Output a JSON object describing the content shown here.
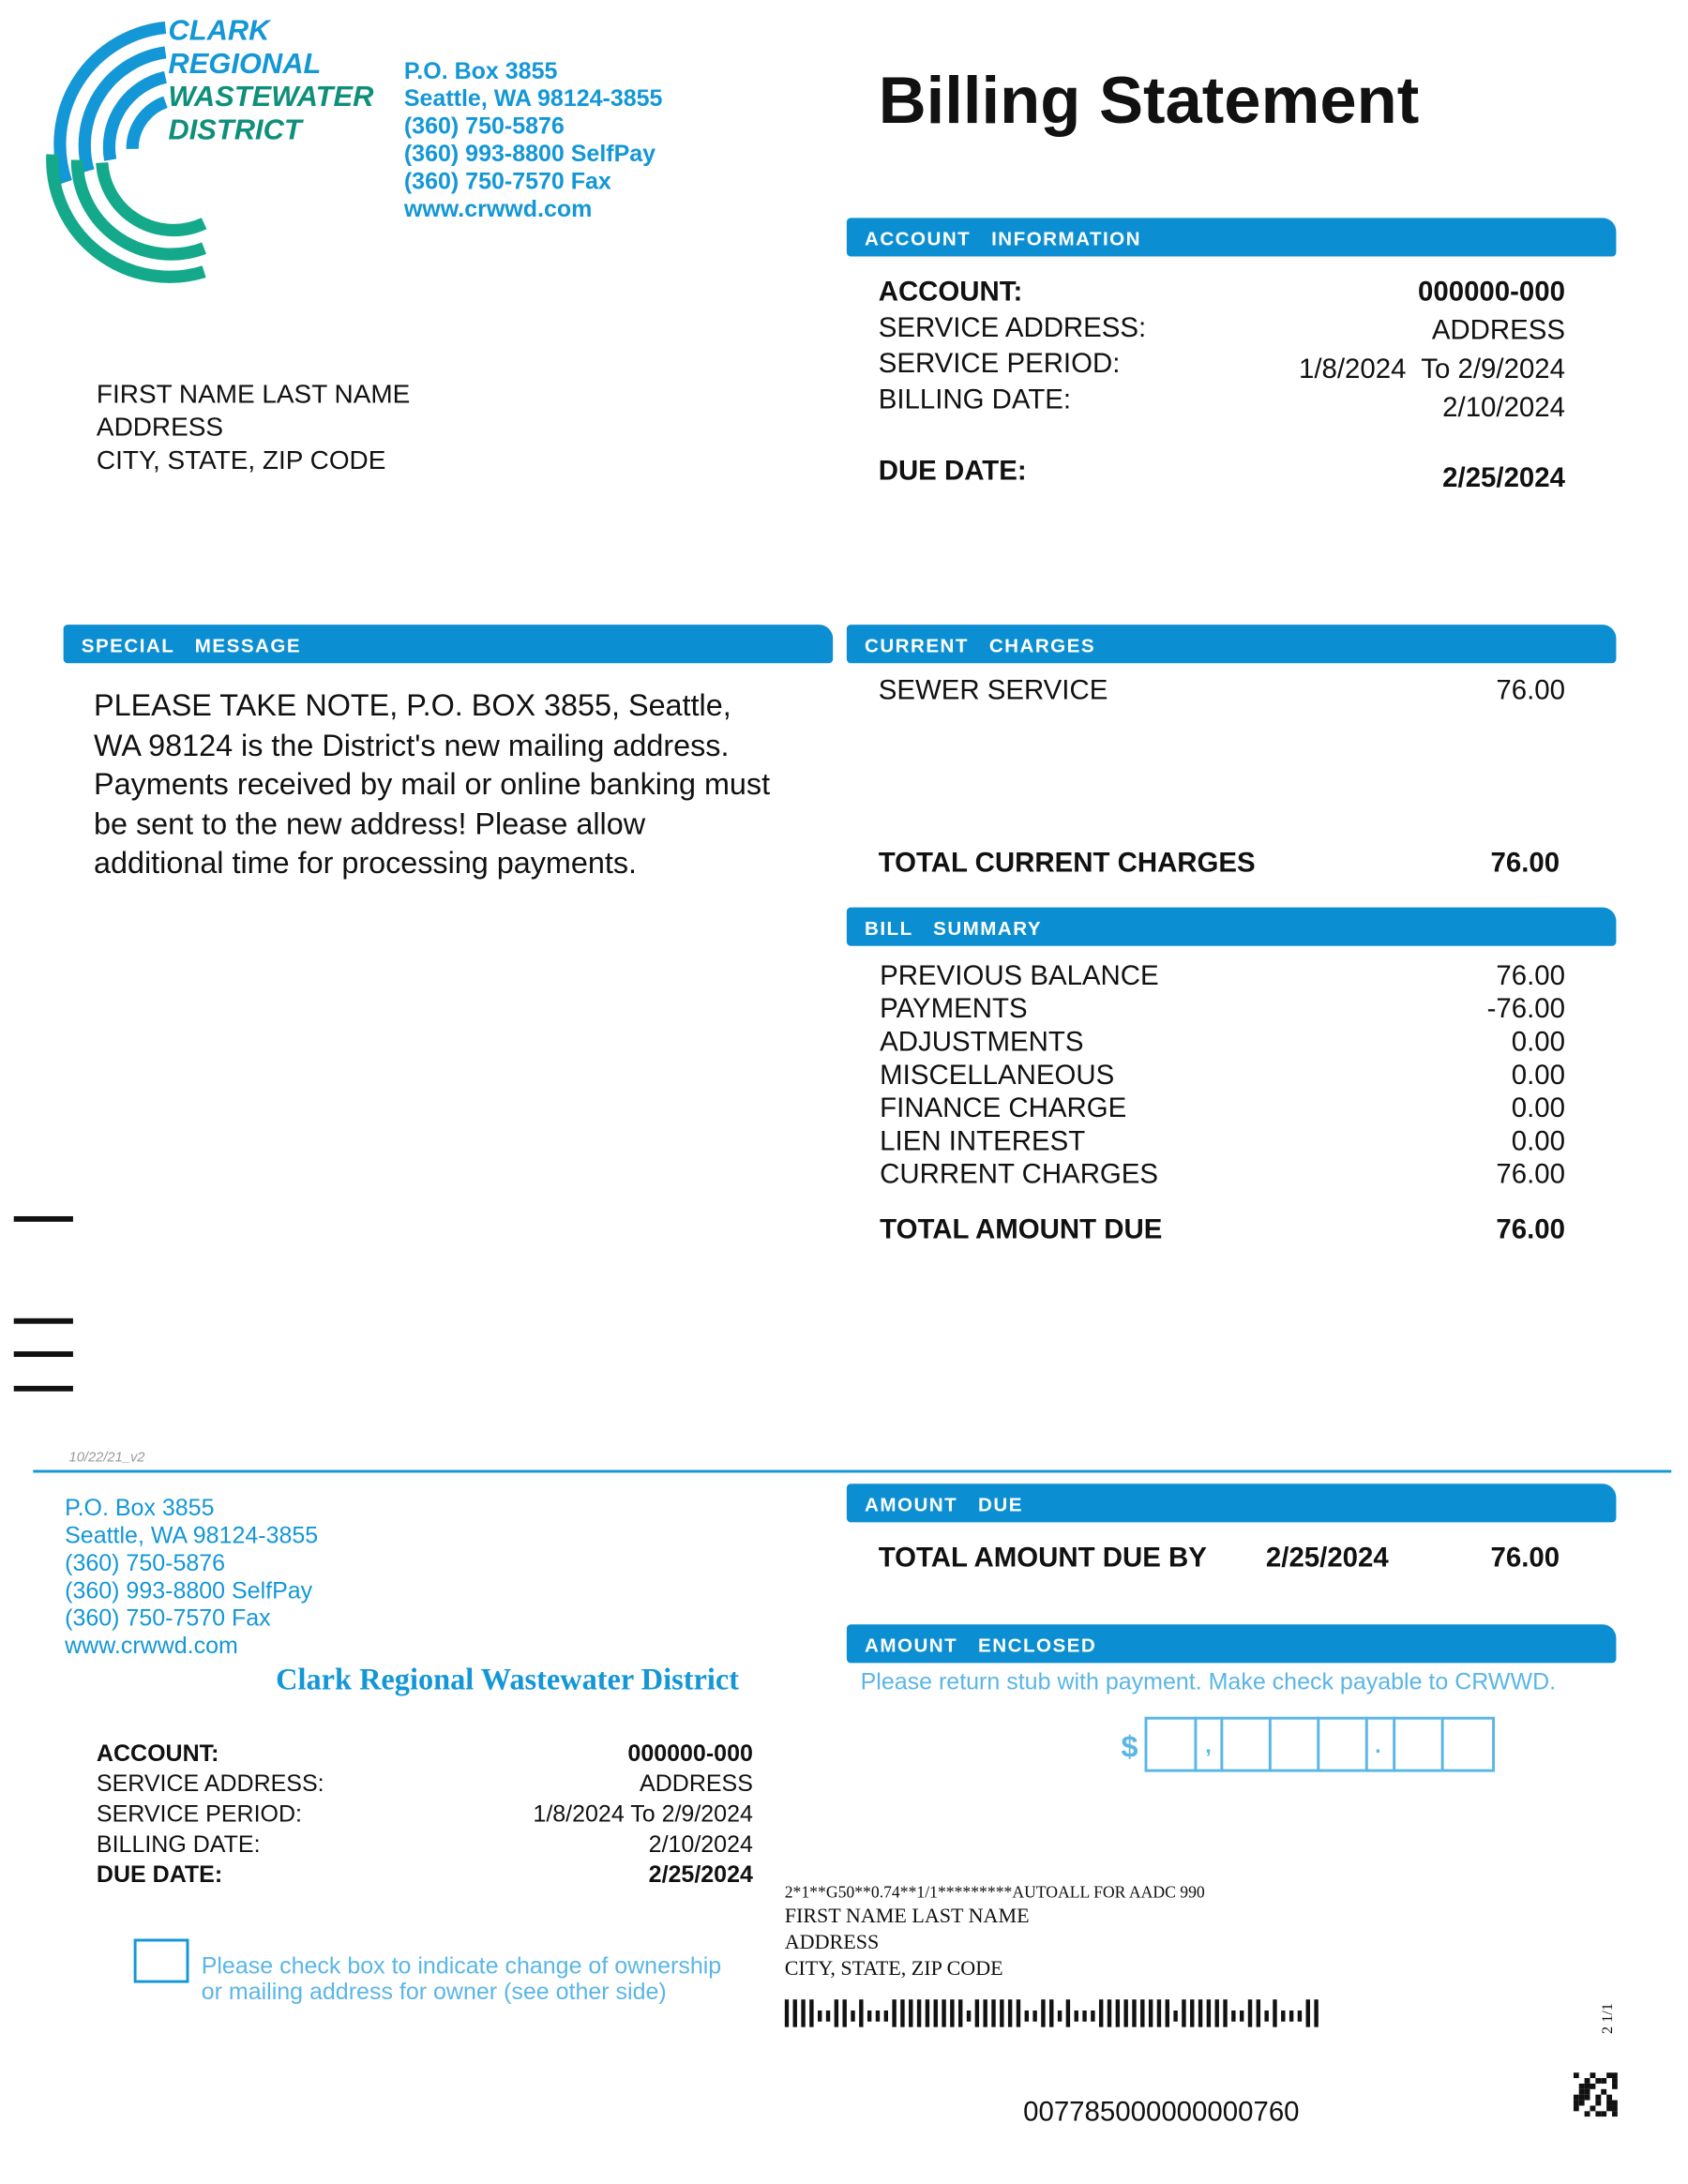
{
  "header": {
    "logo_lines": [
      "CLARK",
      "REGIONAL",
      "WASTEWATER",
      "DISTRICT"
    ],
    "contact": [
      "P.O. Box 3855",
      "Seattle, WA 98124-3855",
      "(360) 750-5876",
      "(360) 993-8800 SelfPay",
      "(360) 750-7570 Fax",
      "www.crwwd.com"
    ],
    "title": "Billing Statement"
  },
  "recipient": [
    "FIRST NAME LAST NAME",
    "ADDRESS",
    "CITY, STATE, ZIP CODE"
  ],
  "account_information": {
    "title": "ACCOUNT INFORMATION",
    "rows": [
      [
        "ACCOUNT:",
        "000000-000"
      ],
      [
        "SERVICE ADDRESS:",
        "ADDRESS"
      ],
      [
        "SERVICE PERIOD:",
        "1/8/2024  To 2/9/2024"
      ],
      [
        "BILLING DATE:",
        "2/10/2024"
      ]
    ],
    "due_date": [
      "DUE DATE:",
      "2/25/2024"
    ]
  },
  "special_message": {
    "title": "SPECIAL MESSAGE",
    "text": "PLEASE TAKE NOTE, P.O. BOX 3855, Seattle, WA 98124 is the District's new mailing address. Payments received by mail or online banking must be sent to the new address! Please allow additional time for processing payments."
  },
  "current_charges": {
    "title": "CURRENT CHARGES",
    "items": [
      [
        "SEWER SERVICE",
        "76.00"
      ]
    ],
    "total": [
      "TOTAL CURRENT CHARGES",
      "76.00"
    ]
  },
  "bill_summary": {
    "title": "BILL SUMMARY",
    "rows": [
      [
        "PREVIOUS BALANCE",
        "76.00"
      ],
      [
        "PAYMENTS",
        "-76.00"
      ],
      [
        "ADJUSTMENTS",
        "0.00"
      ],
      [
        "MISCELLANEOUS",
        "0.00"
      ],
      [
        "FINANCE CHARGE",
        "0.00"
      ],
      [
        "LIEN INTEREST",
        "0.00"
      ],
      [
        "CURRENT CHARGES",
        "76.00"
      ]
    ],
    "total": [
      "TOTAL AMOUNT DUE",
      "76.00"
    ]
  },
  "version": "10/22/21_v2",
  "stub": {
    "contact": [
      "P.O. Box 3855",
      "Seattle, WA 98124-3855",
      "(360) 750-5876",
      "(360) 993-8800 SelfPay",
      "(360) 750-7570 Fax",
      "www.crwwd.com"
    ],
    "company": "Clark Regional Wastewater District",
    "rows": [
      [
        "ACCOUNT:",
        "000000-000"
      ],
      [
        "SERVICE ADDRESS:",
        "ADDRESS"
      ],
      [
        "SERVICE PERIOD:",
        "1/8/2024 To 2/9/2024"
      ],
      [
        "BILLING DATE:",
        "2/10/2024"
      ],
      [
        "DUE DATE:",
        "2/25/2024"
      ]
    ],
    "checkbox_text": [
      "Please check box to indicate change of ownership",
      "or mailing address for owner (see other side)"
    ],
    "amount_due": {
      "title": "AMOUNT DUE",
      "label": "TOTAL AMOUNT DUE BY",
      "date": "2/25/2024",
      "value": "76.00"
    },
    "amount_enclosed": {
      "title": "AMOUNT ENCLOSED",
      "instruction": "Please return stub with payment. Make check payable to CRWWD.",
      "currency": "$",
      "comma": ",",
      "point": "."
    },
    "mailing": [
      "2*1**G50**0.74**1/1*********AUTOALL FOR AADC 990",
      "FIRST NAME LAST NAME",
      "ADDRESS",
      "CITY, STATE, ZIP CODE"
    ],
    "scan_line": "007785000000000760",
    "side_code": "2 1/1"
  }
}
